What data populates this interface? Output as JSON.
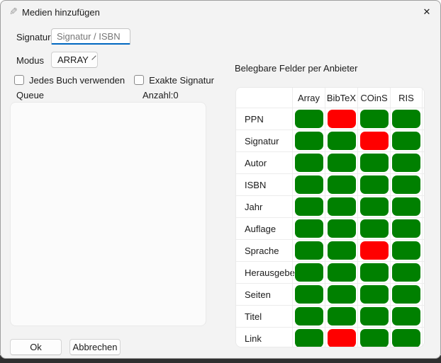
{
  "dialog": {
    "title": "Medien hinzufügen",
    "pencil_glyph": "✎",
    "close_glyph": "✕"
  },
  "form": {
    "signatur_label": "Signatur",
    "signatur_placeholder": "Signatur / ISBN",
    "modus_label": "Modus",
    "modus_value": "ARRAY",
    "checkbox_jedes_buch_label": "Jedes Buch verwenden",
    "checkbox_exakte_signatur_label": "Exakte Signatur",
    "queue_label": "Queue",
    "anzahl_label": "Anzahl:0"
  },
  "buttons": {
    "ok": "Ok",
    "cancel": "Abbrechen"
  },
  "colors": {
    "accent_blue": "#0067c0",
    "green": "#008000",
    "red": "#ff0000"
  },
  "provider_table": {
    "heading": "Belegbare Felder per Anbieter",
    "columns": [
      "Array",
      "BibTeX",
      "COinS",
      "RIS"
    ],
    "rows": [
      {
        "label": "PPN",
        "status": [
          "green",
          "red",
          "green",
          "green"
        ]
      },
      {
        "label": "Signatur",
        "status": [
          "green",
          "green",
          "red",
          "green"
        ]
      },
      {
        "label": "Autor",
        "status": [
          "green",
          "green",
          "green",
          "green"
        ]
      },
      {
        "label": "ISBN",
        "status": [
          "green",
          "green",
          "green",
          "green"
        ]
      },
      {
        "label": "Jahr",
        "status": [
          "green",
          "green",
          "green",
          "green"
        ]
      },
      {
        "label": "Auflage",
        "status": [
          "green",
          "green",
          "green",
          "green"
        ]
      },
      {
        "label": "Sprache",
        "status": [
          "green",
          "green",
          "red",
          "green"
        ]
      },
      {
        "label": "Herausgeber",
        "status": [
          "green",
          "green",
          "green",
          "green"
        ]
      },
      {
        "label": "Seiten",
        "status": [
          "green",
          "green",
          "green",
          "green"
        ]
      },
      {
        "label": "Titel",
        "status": [
          "green",
          "green",
          "green",
          "green"
        ]
      },
      {
        "label": "Link",
        "status": [
          "green",
          "red",
          "green",
          "green"
        ]
      }
    ]
  }
}
